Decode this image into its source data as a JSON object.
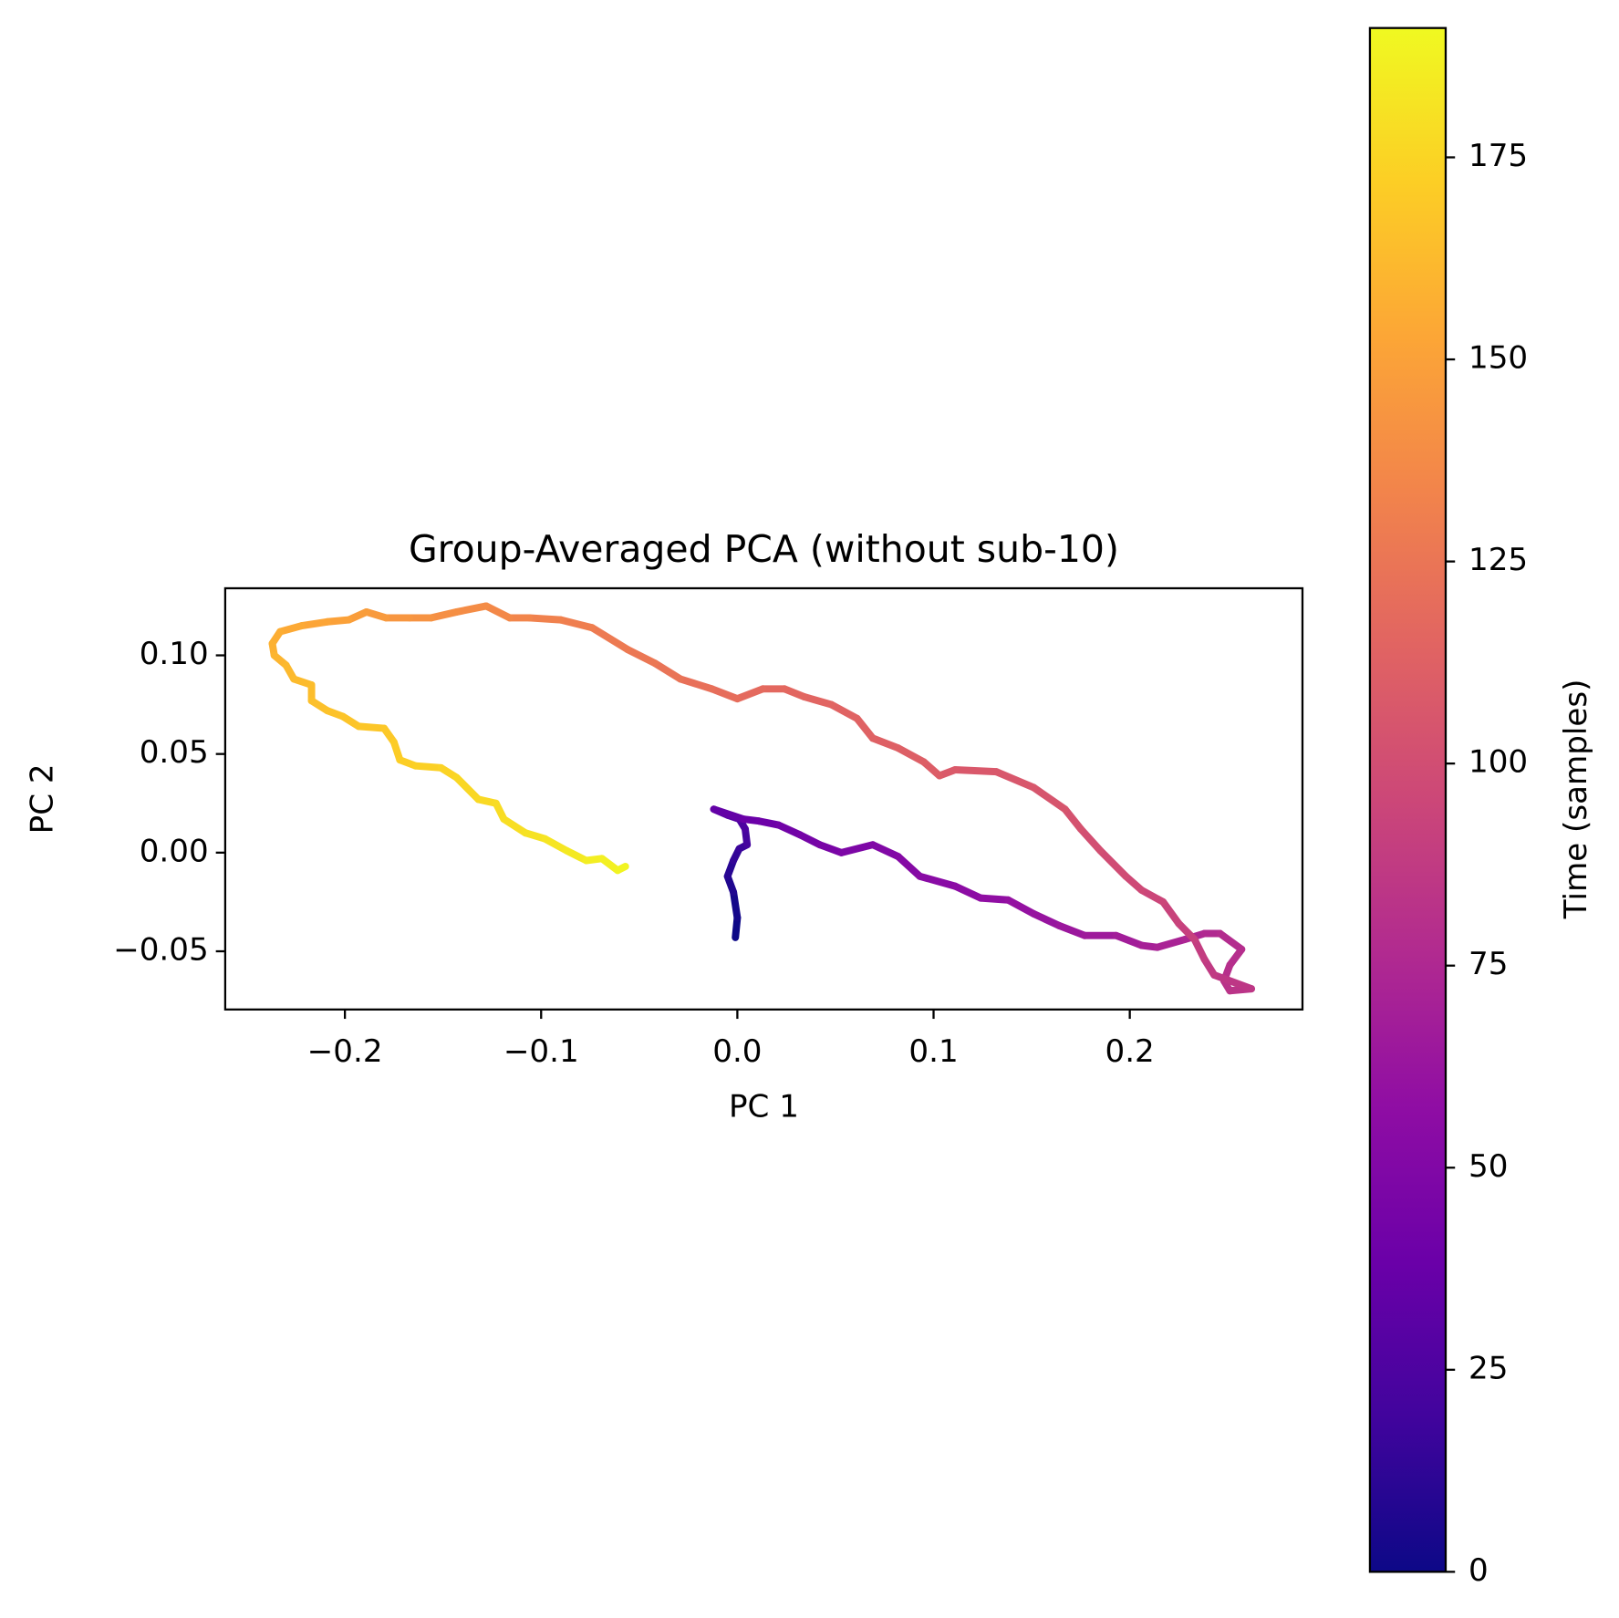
{
  "chart_data": {
    "type": "line",
    "title": "Group-Averaged PCA (without sub-10)",
    "xlabel": "PC 1",
    "ylabel": "PC 2",
    "xlim": [
      -0.261,
      0.288
    ],
    "ylim": [
      -0.0795,
      0.134
    ],
    "xticks": [
      {
        "value": -0.2,
        "label": "−0.2"
      },
      {
        "value": -0.1,
        "label": "−0.1"
      },
      {
        "value": 0.0,
        "label": "0.0"
      },
      {
        "value": 0.1,
        "label": "0.1"
      },
      {
        "value": 0.2,
        "label": "0.2"
      }
    ],
    "yticks": [
      {
        "value": -0.05,
        "label": "−0.05"
      },
      {
        "value": 0.0,
        "label": "0.00"
      },
      {
        "value": 0.05,
        "label": "0.05"
      },
      {
        "value": 0.1,
        "label": "0.10"
      }
    ],
    "grid": false,
    "colormap": "plasma",
    "colorbar": {
      "label": "Time (samples)",
      "clim": [
        0,
        191
      ],
      "ticks": [
        0,
        25,
        50,
        75,
        100,
        125,
        150,
        175
      ]
    },
    "series": [
      {
        "x": [
          -0.001,
          0.0,
          -0.002,
          -0.005,
          -0.002,
          0.001,
          0.005,
          0.004,
          0.001,
          -0.005,
          -0.012,
          0.003,
          0.011,
          0.021,
          0.032,
          0.042,
          0.053,
          0.069,
          0.082,
          0.093,
          0.111,
          0.124,
          0.138,
          0.151,
          0.164,
          0.177,
          0.193,
          0.206,
          0.214,
          0.228,
          0.238,
          0.246,
          0.257,
          0.251,
          0.248,
          0.251,
          0.262,
          0.243,
          0.238,
          0.233,
          0.225,
          0.217,
          0.206,
          0.198,
          0.185,
          0.175,
          0.167,
          0.151,
          0.132,
          0.111,
          0.103,
          0.095,
          0.082,
          0.069,
          0.061,
          0.048,
          0.034,
          0.024,
          0.013,
          0.0,
          -0.013,
          -0.029,
          -0.042,
          -0.056,
          -0.074,
          -0.09,
          -0.106,
          -0.116,
          -0.128,
          -0.143,
          -0.156,
          -0.167,
          -0.179,
          -0.189,
          -0.198,
          -0.209,
          -0.222,
          -0.233,
          -0.237,
          -0.236,
          -0.23,
          -0.226,
          -0.217,
          -0.217,
          -0.209,
          -0.201,
          -0.193,
          -0.18,
          -0.175,
          -0.172,
          -0.164,
          -0.151,
          -0.143,
          -0.132,
          -0.123,
          -0.119,
          -0.108,
          -0.098,
          -0.087,
          -0.077,
          -0.069,
          -0.061,
          -0.057
        ],
        "values": [
          -0.043,
          -0.033,
          -0.02,
          -0.012,
          -0.004,
          0.002,
          0.004,
          0.012,
          0.017,
          0.019,
          0.022,
          0.017,
          0.016,
          0.014,
          0.009,
          0.004,
          0.0,
          0.004,
          -0.002,
          -0.012,
          -0.017,
          -0.023,
          -0.024,
          -0.031,
          -0.037,
          -0.042,
          -0.042,
          -0.047,
          -0.048,
          -0.044,
          -0.041,
          -0.041,
          -0.049,
          -0.057,
          -0.065,
          -0.07,
          -0.069,
          -0.062,
          -0.054,
          -0.044,
          -0.036,
          -0.025,
          -0.019,
          -0.012,
          0.001,
          0.012,
          0.022,
          0.033,
          0.041,
          0.042,
          0.039,
          0.046,
          0.053,
          0.058,
          0.068,
          0.075,
          0.079,
          0.083,
          0.083,
          0.078,
          0.083,
          0.088,
          0.096,
          0.103,
          0.114,
          0.118,
          0.119,
          0.119,
          0.125,
          0.122,
          0.119,
          0.119,
          0.119,
          0.122,
          0.118,
          0.117,
          0.115,
          0.112,
          0.106,
          0.1,
          0.095,
          0.088,
          0.085,
          0.077,
          0.072,
          0.069,
          0.064,
          0.063,
          0.056,
          0.047,
          0.044,
          0.043,
          0.038,
          0.027,
          0.025,
          0.017,
          0.01,
          0.007,
          0.001,
          -0.004,
          -0.003,
          -0.009,
          -0.007
        ],
        "time": [
          0,
          3,
          7,
          10,
          14,
          17,
          21,
          24,
          28,
          31,
          35,
          38,
          40,
          42,
          44,
          46,
          48,
          50,
          52,
          54,
          56,
          58,
          60,
          62,
          64,
          66,
          68,
          70,
          72,
          74,
          76,
          78,
          79,
          80,
          82,
          83,
          85,
          87,
          89,
          91,
          93,
          95,
          97,
          99,
          101,
          103,
          105,
          106,
          107,
          108,
          110,
          111,
          112,
          113,
          114,
          115,
          116,
          117,
          118,
          120,
          122,
          124,
          126,
          128,
          130,
          132,
          134,
          136,
          138,
          140,
          142,
          144,
          146,
          148,
          150,
          152,
          154,
          156,
          158,
          160,
          162,
          163,
          164,
          165,
          166,
          167,
          168,
          169,
          171,
          172,
          173,
          174,
          176,
          177,
          178,
          179,
          181,
          182,
          184,
          186,
          187,
          189,
          191
        ]
      }
    ]
  }
}
